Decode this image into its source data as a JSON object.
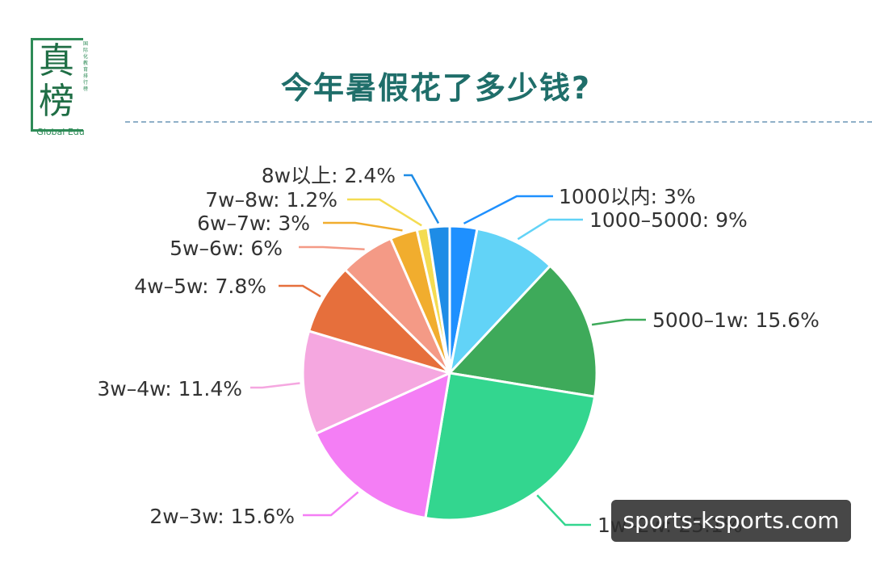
{
  "logo": {
    "char1": "真",
    "char2": "榜",
    "side_text": "国际化教育排行榜",
    "sub_text": "Global Edu"
  },
  "watermark": "sports-ksports.com",
  "chart_data": {
    "type": "pie",
    "title": "今年暑假花了多少钱?",
    "start_angle_deg": 0,
    "direction": "clockwise",
    "slices": [
      {
        "label": "1000以内",
        "value": 3,
        "display": "1000以内: 3%",
        "color": "#1e90ff"
      },
      {
        "label": "1000-5000",
        "value": 9,
        "display": "1000–5000: 9%",
        "color": "#62d3f7"
      },
      {
        "label": "5000-1w",
        "value": 15.6,
        "display": "5000–1w: 15.6%",
        "color": "#3eaa5a"
      },
      {
        "label": "1w-2w",
        "value": 25.1,
        "display": "1w–2w: 25.1%",
        "color": "#33d68f"
      },
      {
        "label": "2w-3w",
        "value": 15.6,
        "display": "2w–3w: 15.6%",
        "color": "#f47ef5"
      },
      {
        "label": "3w-4w",
        "value": 11.4,
        "display": "3w–4w: 11.4%",
        "color": "#f5a7e0"
      },
      {
        "label": "4w-5w",
        "value": 7.8,
        "display": "4w–5w: 7.8%",
        "color": "#e66f3c"
      },
      {
        "label": "5w-6w",
        "value": 6,
        "display": "5w–6w: 6%",
        "color": "#f49a86"
      },
      {
        "label": "6w-7w",
        "value": 3,
        "display": "6w–7w: 3%",
        "color": "#f1ad2e"
      },
      {
        "label": "7w-8w",
        "value": 1.2,
        "display": "7w–8w: 1.2%",
        "color": "#f4dc52"
      },
      {
        "label": "8w以上",
        "value": 2.4,
        "display": "8w以上: 2.4%",
        "color": "#1e8ce6"
      }
    ]
  }
}
